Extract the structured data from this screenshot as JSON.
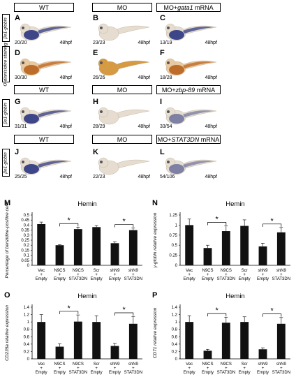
{
  "row_headers": [
    {
      "wt": "WT",
      "mo": "MO",
      "rescue_prefix": "MO+",
      "rescue_gene": "gata1",
      "rescue_suffix": " mRNA"
    },
    {
      "wt": "WT",
      "mo": "MO",
      "rescue_prefix": "MO+",
      "rescue_gene": "zbp-89",
      "rescue_suffix": " mRNA"
    },
    {
      "wt": "WT",
      "mo": "MO",
      "rescue_prefix": "MO+",
      "rescue_gene": "STAT3DN",
      "rescue_suffix": " mRNA"
    }
  ],
  "side_labels": [
    "βe1-globin",
    "O-dianisidine staining",
    "βe1-globin",
    "βe1-globin"
  ],
  "panels": [
    {
      "letter": "A",
      "count": "20/20",
      "stage": "48hpf",
      "style": "blue-strong"
    },
    {
      "letter": "B",
      "count": "23/23",
      "stage": "48hpf",
      "style": "pale"
    },
    {
      "letter": "C",
      "count": "13/19",
      "stage": "48hpf",
      "style": "blue-strong"
    },
    {
      "letter": "D",
      "count": "30/30",
      "stage": "48hpf",
      "style": "orange-strong"
    },
    {
      "letter": "E",
      "count": "26/26",
      "stage": "48hpf",
      "style": "orange-pale"
    },
    {
      "letter": "F",
      "count": "18/28",
      "stage": "48hpf",
      "style": "orange-strong"
    },
    {
      "letter": "G",
      "count": "31/31",
      "stage": "48hpf",
      "style": "blue-strong"
    },
    {
      "letter": "H",
      "count": "28/29",
      "stage": "48hpf",
      "style": "pale"
    },
    {
      "letter": "I",
      "count": "33/54",
      "stage": "48hpf",
      "style": "blue-mid"
    },
    {
      "letter": "J",
      "count": "25/25",
      "stage": "48hpf",
      "style": "blue-strong"
    },
    {
      "letter": "K",
      "count": "22/23",
      "stage": "48hpf",
      "style": "pale"
    },
    {
      "letter": "L",
      "count": "54/106",
      "stage": "48hpf",
      "style": "blue-mid"
    }
  ],
  "colors": {
    "bar": "#111111",
    "blue": "#2a3580",
    "orange": "#b8631c",
    "embryo": "#e6ddd0"
  },
  "chart_data": [
    {
      "type": "bar",
      "letter": "M",
      "title": "Hemin",
      "ylabel": "Percentage of benzidine-positive cells",
      "categories": [
        "Vec + Empty",
        "N9CS + Empty",
        "N9CS + STAT3DN",
        "Scr + Empty",
        "shN9 + Empty",
        "shN9 + STAT3DN"
      ],
      "values": [
        0.41,
        0.2,
        0.36,
        0.38,
        0.22,
        0.35
      ],
      "errors": [
        0.02,
        0.005,
        0.02,
        0.015,
        0.015,
        0.02
      ],
      "ylim": [
        0,
        0.5
      ],
      "yticks": [
        "0",
        "0.05",
        "0.1",
        "0.15",
        "0.2",
        "0.25",
        "0.3",
        "0.35",
        "0.4",
        "0.45",
        "0.5"
      ],
      "significance": [
        [
          1,
          2
        ],
        [
          4,
          5
        ]
      ],
      "sig_label": "*"
    },
    {
      "type": "bar",
      "letter": "N",
      "title": "Hemin",
      "ylabel": "γ-globin relative expression",
      "categories": [
        "Vec + Empty",
        "N9CS + Empty",
        "N9CS + STAT3DN",
        "Scr + Empty",
        "shN9 + Empty",
        "shN9 + STAT3DN"
      ],
      "values": [
        1.0,
        0.43,
        0.85,
        0.98,
        0.47,
        0.82
      ],
      "errors": [
        0.15,
        0.07,
        0.13,
        0.15,
        0.08,
        0.12
      ],
      "ylim": [
        0,
        1.25
      ],
      "yticks": [
        "0",
        "0.25",
        "0.5",
        "0.75",
        "1",
        "1.25"
      ],
      "significance": [
        [
          1,
          2
        ],
        [
          4,
          5
        ]
      ],
      "sig_label": "*"
    },
    {
      "type": "bar",
      "letter": "O",
      "title": "Hemin",
      "ylabel": "CD235a relative expression",
      "categories": [
        "Vec + Empty",
        "N9CS + Empty",
        "N9CS + STAT3DN",
        "Scr + Empty",
        "shN9 + Empty",
        "shN9 + STAT3DN"
      ],
      "values": [
        1.0,
        0.33,
        1.01,
        1.0,
        0.35,
        0.95
      ],
      "errors": [
        0.2,
        0.08,
        0.18,
        0.17,
        0.07,
        0.2
      ],
      "ylim": [
        0,
        1.4
      ],
      "yticks": [
        "0",
        "0.2",
        "0.4",
        "0.6",
        "0.8",
        "1",
        "1.2",
        "1.4"
      ],
      "significance": [
        [
          1,
          2
        ],
        [
          4,
          5
        ]
      ],
      "sig_label": "*"
    },
    {
      "type": "bar",
      "letter": "P",
      "title": "Hemin",
      "ylabel": "CD71 relative expression",
      "categories": [
        "Vec + Empty",
        "N9CS + Empty",
        "N9CS + STAT3DN",
        "Scr + Empty",
        "shN9 + Empty",
        "shN9 + STAT3DN"
      ],
      "values": [
        1.0,
        0.22,
        0.98,
        1.0,
        0.26,
        0.95
      ],
      "errors": [
        0.17,
        0.04,
        0.15,
        0.14,
        0.04,
        0.17
      ],
      "ylim": [
        0,
        1.4
      ],
      "yticks": [
        "0",
        "0.2",
        "0.4",
        "0.6",
        "0.8",
        "1",
        "1.2",
        "1.4"
      ],
      "significance": [
        [
          1,
          2
        ],
        [
          4,
          5
        ]
      ],
      "sig_label": "*"
    }
  ]
}
